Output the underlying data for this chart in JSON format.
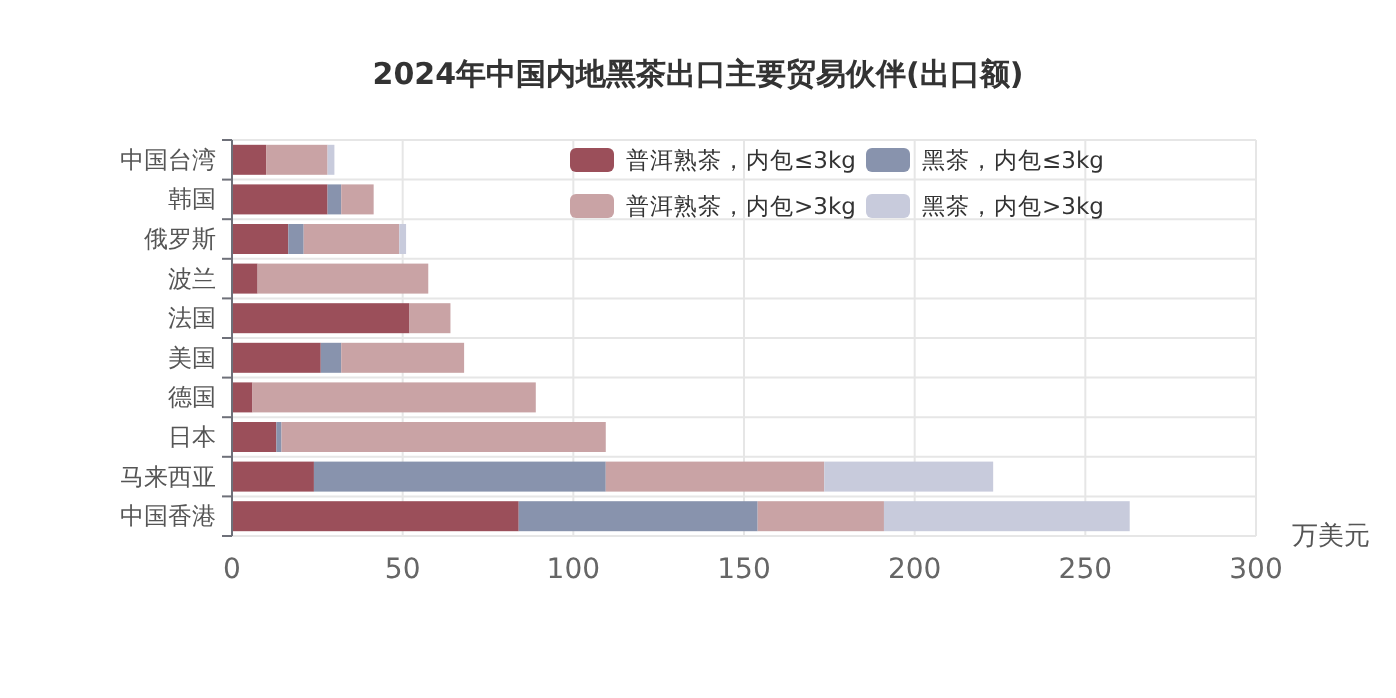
{
  "chart_data": {
    "type": "bar",
    "orientation": "horizontal",
    "stacked": true,
    "title": "2024年中国内地黑茶出口主要贸易伙伴(出口额)",
    "xlabel": "万美元",
    "categories": [
      "中国台湾",
      "韩国",
      "俄罗斯",
      "波兰",
      "法国",
      "美国",
      "德国",
      "日本",
      "马来西亚",
      "中国香港"
    ],
    "series": [
      {
        "name": "普洱熟茶，内包≤3kg",
        "color": "#9b4f5a",
        "values": [
          10,
          28,
          16.5,
          7.5,
          52,
          26,
          6,
          13,
          24,
          84
        ]
      },
      {
        "name": "黑茶，内包≤3kg",
        "color": "#8893ad",
        "values": [
          0,
          4,
          4.5,
          0,
          0,
          6,
          0,
          1.5,
          85.5,
          70
        ]
      },
      {
        "name": "普洱熟茶，内包>3kg",
        "color": "#c9a3a5",
        "values": [
          18,
          9.5,
          28,
          50,
          12,
          36,
          83,
          95,
          64,
          37
        ]
      },
      {
        "name": "黑茶，内包>3kg",
        "color": "#c8cbdc",
        "values": [
          2,
          0,
          2,
          0,
          0,
          0,
          0,
          0,
          49.5,
          72
        ]
      }
    ],
    "xlim": [
      0,
      300
    ],
    "xticks": [
      0,
      50,
      100,
      150,
      200,
      250,
      300
    ],
    "grid": true,
    "legend": "top right"
  }
}
